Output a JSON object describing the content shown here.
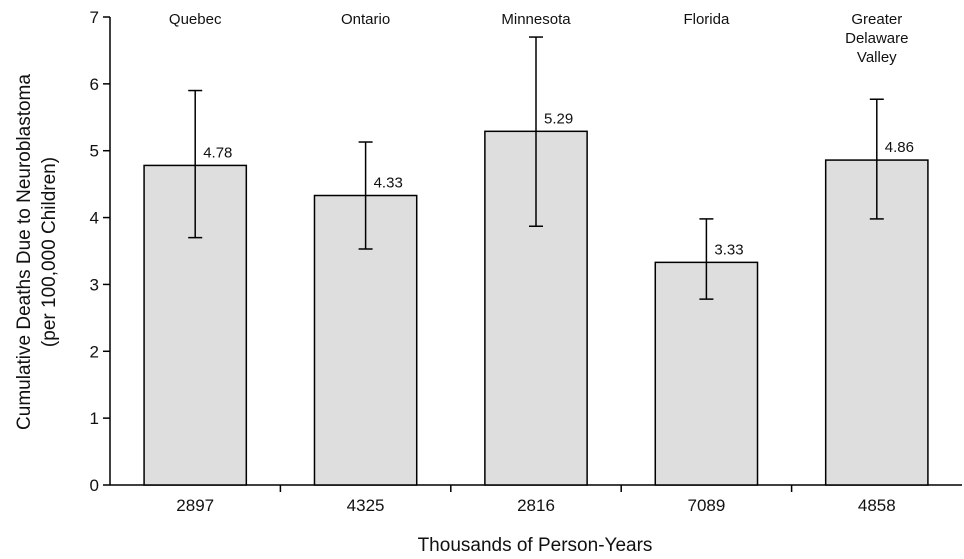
{
  "chart_data": {
    "type": "bar",
    "xlabel": "Thousands of Person-Years",
    "ylabel": "Cumulative Deaths Due to Neuroblastoma",
    "ylabel_line2": "(per 100,000 Children)",
    "ylim": [
      0,
      7
    ],
    "yticks": [
      "0",
      "1",
      "2",
      "3",
      "4",
      "5",
      "6",
      "7"
    ],
    "categories": [
      "2897",
      "4325",
      "2816",
      "7089",
      "4858"
    ],
    "region_labels": [
      [
        "Quebec"
      ],
      [
        "Ontario"
      ],
      [
        "Minnesota"
      ],
      [
        "Florida"
      ],
      [
        "Greater",
        "Delaware",
        "Valley"
      ]
    ],
    "values": [
      4.78,
      4.33,
      5.29,
      3.33,
      4.86
    ],
    "value_labels": [
      "4.78",
      "4.33",
      "5.29",
      "3.33",
      "4.86"
    ],
    "error_low": [
      3.7,
      3.53,
      3.87,
      2.78,
      3.98
    ],
    "error_high": [
      5.9,
      5.13,
      6.7,
      3.98,
      5.77
    ],
    "bar_fill": "#dedede",
    "bar_stroke": "#000000",
    "grid": false
  }
}
